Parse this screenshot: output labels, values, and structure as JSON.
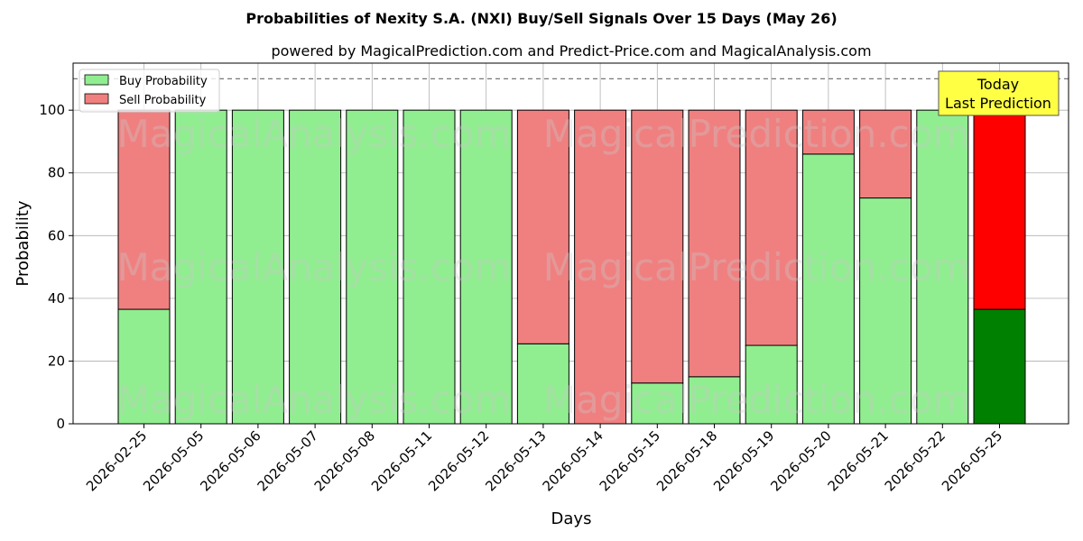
{
  "chart_data": {
    "type": "bar",
    "stacked": true,
    "title": "Probabilities of Nexity S.A. (NXI) Buy/Sell Signals Over 15 Days (May 26)",
    "subtitle": "powered by MagicalPrediction.com and Predict-Price.com and MagicalAnalysis.com",
    "xlabel": "Days",
    "ylabel": "Probability",
    "ylim": [
      0,
      115
    ],
    "yticks": [
      0,
      20,
      40,
      60,
      80,
      100
    ],
    "grid": true,
    "legend_position": "top-left",
    "reference_line": {
      "y": 110,
      "style": "dashed"
    },
    "categories": [
      "2026-02-25",
      "2026-05-05",
      "2026-05-06",
      "2026-05-07",
      "2026-05-08",
      "2026-05-11",
      "2026-05-12",
      "2026-05-13",
      "2026-05-14",
      "2026-05-15",
      "2026-05-18",
      "2026-05-19",
      "2026-05-20",
      "2026-05-21",
      "2026-05-22",
      "2026-05-25"
    ],
    "series": [
      {
        "name": "Buy Probability",
        "color": "#90ee90",
        "highlight_color": "#008000",
        "values": [
          36.5,
          100,
          100,
          100,
          100,
          100,
          100,
          25.5,
          0,
          13,
          15,
          25,
          86,
          72,
          100,
          36.5
        ]
      },
      {
        "name": "Sell Probability",
        "color": "#f08080",
        "highlight_color": "#ff0000",
        "values": [
          63.5,
          0,
          0,
          0,
          0,
          0,
          0,
          74.5,
          100,
          87,
          85,
          75,
          14,
          28,
          0,
          63.5
        ]
      }
    ],
    "highlight_index": 15,
    "annotation": {
      "lines": [
        "Today",
        "Last Prediction"
      ],
      "box_color": "#ffff44"
    },
    "watermarks": [
      "MagicalAnalysis.com",
      "MagicalPrediction.com"
    ]
  }
}
